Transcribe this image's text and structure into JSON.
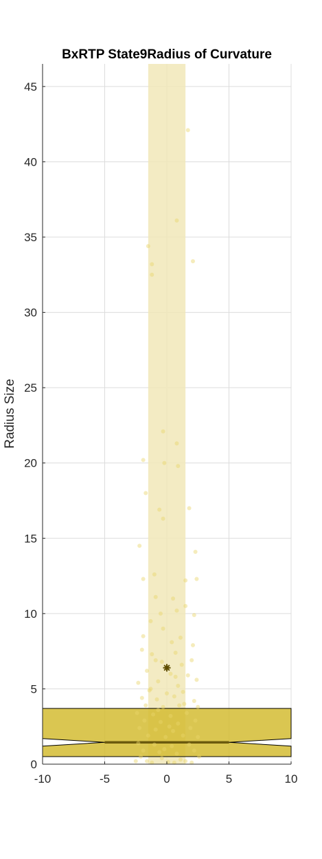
{
  "chart_data": {
    "type": "scatter",
    "title": "BxRTP  State9Radius of Curvature",
    "ylabel": "Radius Size",
    "xlabel": "",
    "xlim": [
      -10,
      10
    ],
    "ylim": [
      0,
      46.5
    ],
    "xticks": [
      -10,
      -5,
      0,
      5,
      10
    ],
    "yticks": [
      0,
      5,
      10,
      15,
      20,
      25,
      30,
      35,
      40,
      45
    ],
    "grid": true,
    "colors": {
      "box_fill": "#d4bc33",
      "box_edge": "#000000",
      "median_line": "#6b5a0e",
      "mean_marker": "#5e4d00",
      "band_fill": "#f1e8b8",
      "scatter_point": "#e8d56a",
      "grid": "#dcdcdc",
      "axis": "#262626"
    },
    "band": {
      "x_range": [
        -1.5,
        1.5
      ],
      "y_range": [
        0,
        46.5
      ]
    },
    "box": {
      "x_range": [
        -10,
        10
      ],
      "q1": 0.5,
      "median": 1.45,
      "q3": 3.7,
      "notch_low": 1.2,
      "notch_high": 1.7,
      "notch_x_range": [
        -5,
        5
      ]
    },
    "mean": {
      "x": 0,
      "y": 6.4
    },
    "points": [
      {
        "x": 1.7,
        "y": 42.1
      },
      {
        "x": 0.8,
        "y": 36.1
      },
      {
        "x": -1.5,
        "y": 34.4
      },
      {
        "x": -1.2,
        "y": 33.2
      },
      {
        "x": 2.1,
        "y": 33.4
      },
      {
        "x": -1.2,
        "y": 32.5
      },
      {
        "x": 0.8,
        "y": 21.3
      },
      {
        "x": -0.3,
        "y": 22.1
      },
      {
        "x": -1.9,
        "y": 20.2
      },
      {
        "x": -0.2,
        "y": 20.0
      },
      {
        "x": 0.9,
        "y": 19.8
      },
      {
        "x": -1.7,
        "y": 18.0
      },
      {
        "x": 1.8,
        "y": 17.0
      },
      {
        "x": -0.6,
        "y": 16.9
      },
      {
        "x": -0.3,
        "y": 16.3
      },
      {
        "x": -2.2,
        "y": 14.5
      },
      {
        "x": 2.3,
        "y": 14.1
      },
      {
        "x": -1.9,
        "y": 12.3
      },
      {
        "x": -1.0,
        "y": 12.6
      },
      {
        "x": 1.5,
        "y": 12.2
      },
      {
        "x": 2.4,
        "y": 12.3
      },
      {
        "x": -0.9,
        "y": 11.1
      },
      {
        "x": 0.5,
        "y": 11.0
      },
      {
        "x": 1.5,
        "y": 10.5
      },
      {
        "x": -0.5,
        "y": 10.0
      },
      {
        "x": 0.8,
        "y": 10.2
      },
      {
        "x": -1.3,
        "y": 9.5
      },
      {
        "x": -0.3,
        "y": 9.0
      },
      {
        "x": 2.2,
        "y": 9.9
      },
      {
        "x": -1.9,
        "y": 8.5
      },
      {
        "x": 0.4,
        "y": 8.1
      },
      {
        "x": 1.1,
        "y": 8.4
      },
      {
        "x": -2.0,
        "y": 7.6
      },
      {
        "x": -1.2,
        "y": 7.3
      },
      {
        "x": 0.7,
        "y": 7.4
      },
      {
        "x": 2.1,
        "y": 7.9
      },
      {
        "x": -0.9,
        "y": 6.9
      },
      {
        "x": -0.4,
        "y": 6.8
      },
      {
        "x": 1.2,
        "y": 6.6
      },
      {
        "x": 2.0,
        "y": 6.9
      },
      {
        "x": -1.6,
        "y": 6.2
      },
      {
        "x": 0.3,
        "y": 6.0
      },
      {
        "x": 1.7,
        "y": 5.9
      },
      {
        "x": -2.3,
        "y": 5.4
      },
      {
        "x": -0.7,
        "y": 5.5
      },
      {
        "x": 0.9,
        "y": 5.2
      },
      {
        "x": 2.4,
        "y": 5.6
      },
      {
        "x": -1.4,
        "y": 4.9
      },
      {
        "x": 0.0,
        "y": 4.7
      },
      {
        "x": 1.3,
        "y": 4.8
      },
      {
        "x": -2.0,
        "y": 4.4
      },
      {
        "x": -0.8,
        "y": 4.3
      },
      {
        "x": 0.6,
        "y": 4.5
      },
      {
        "x": 2.2,
        "y": 4.2
      },
      {
        "x": -1.7,
        "y": 3.9
      },
      {
        "x": -0.3,
        "y": 3.8
      },
      {
        "x": 1.0,
        "y": 3.9
      },
      {
        "x": 2.5,
        "y": 3.8
      },
      {
        "x": -2.4,
        "y": 3.4
      },
      {
        "x": -1.1,
        "y": 3.3
      },
      {
        "x": 0.3,
        "y": 3.2
      },
      {
        "x": 1.6,
        "y": 3.4
      },
      {
        "x": -1.8,
        "y": 2.9
      },
      {
        "x": -0.5,
        "y": 2.8
      },
      {
        "x": 0.9,
        "y": 2.7
      },
      {
        "x": 2.3,
        "y": 2.9
      },
      {
        "x": -2.2,
        "y": 2.4
      },
      {
        "x": -0.9,
        "y": 2.3
      },
      {
        "x": 0.5,
        "y": 2.2
      },
      {
        "x": 1.9,
        "y": 2.4
      },
      {
        "x": -1.5,
        "y": 1.9
      },
      {
        "x": -0.1,
        "y": 1.8
      },
      {
        "x": 1.3,
        "y": 1.9
      },
      {
        "x": 2.5,
        "y": 1.8
      },
      {
        "x": -2.3,
        "y": 1.4
      },
      {
        "x": -1.0,
        "y": 1.3
      },
      {
        "x": 0.4,
        "y": 1.2
      },
      {
        "x": 1.8,
        "y": 1.3
      },
      {
        "x": -1.9,
        "y": 0.9
      },
      {
        "x": -0.6,
        "y": 0.8
      },
      {
        "x": 0.8,
        "y": 0.7
      },
      {
        "x": 2.2,
        "y": 0.9
      },
      {
        "x": -2.1,
        "y": 0.5
      },
      {
        "x": -0.4,
        "y": 0.4
      },
      {
        "x": 1.1,
        "y": 0.3
      },
      {
        "x": 2.6,
        "y": 0.5
      },
      {
        "x": -1.6,
        "y": 0.2
      },
      {
        "x": 0.1,
        "y": 0.15
      },
      {
        "x": 1.5,
        "y": 0.2
      },
      {
        "x": -1.2,
        "y": 0.1
      },
      {
        "x": 0.6,
        "y": 0.1
      },
      {
        "x": 2.0,
        "y": 0.1
      },
      {
        "x": -2.5,
        "y": 0.2
      },
      {
        "x": -0.2,
        "y": 1.0
      },
      {
        "x": 0.2,
        "y": 2.5
      },
      {
        "x": -0.7,
        "y": 3.6
      },
      {
        "x": 1.4,
        "y": 4.0
      },
      {
        "x": -1.3,
        "y": 5.0
      },
      {
        "x": 0.7,
        "y": 5.8
      }
    ]
  }
}
